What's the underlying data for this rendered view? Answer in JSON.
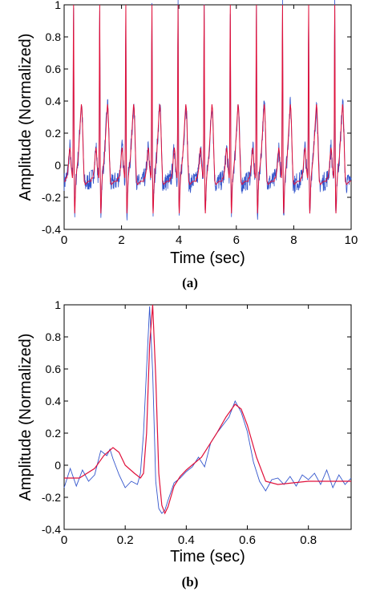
{
  "colors": {
    "noisy": "#3355cc",
    "filtered": "#e0103a",
    "axis": "#000000",
    "background": "#ffffff"
  },
  "panels": [
    {
      "caption": "(a)",
      "xlabel": "Time (sec)",
      "ylabel": "Amplitude (Normalized)"
    },
    {
      "caption": "(b)",
      "xlabel": "Time (sec)",
      "ylabel": "Amplitude (Normalized)"
    }
  ],
  "chart_data": [
    {
      "type": "line",
      "title": "",
      "xlabel": "Time (sec)",
      "ylabel": "Amplitude (Normalized)",
      "xlim": [
        0,
        10
      ],
      "ylim": [
        -0.4,
        1
      ],
      "xticks": [
        0,
        2,
        4,
        6,
        8,
        10
      ],
      "yticks": [
        -0.4,
        -0.2,
        0,
        0.2,
        0.4,
        0.6,
        0.8,
        1
      ],
      "grid": false,
      "legend": "none",
      "beat_times": [
        0.33,
        1.24,
        2.15,
        3.06,
        3.97,
        4.88,
        5.79,
        6.7,
        7.61,
        8.52,
        9.43
      ],
      "beat_template": {
        "t": [
          0,
          0.05,
          0.1,
          0.13,
          0.16,
          0.18,
          0.2,
          0.23,
          0.25,
          0.26,
          0.27,
          0.28,
          0.29,
          0.3,
          0.31,
          0.32,
          0.33,
          0.34,
          0.36,
          0.38,
          0.4,
          0.45,
          0.5,
          0.53,
          0.56,
          0.58,
          0.6,
          0.63,
          0.66,
          0.7,
          0.8,
          0.91
        ],
        "y": [
          -0.08,
          -0.08,
          -0.02,
          0.06,
          0.11,
          0.08,
          0.0,
          -0.05,
          -0.08,
          -0.05,
          0.2,
          0.75,
          1.0,
          0.55,
          -0.05,
          -0.25,
          -0.3,
          -0.26,
          -0.13,
          -0.07,
          -0.03,
          0.05,
          0.2,
          0.3,
          0.38,
          0.35,
          0.25,
          0.05,
          -0.1,
          -0.12,
          -0.1,
          -0.1
        ]
      },
      "series": [
        {
          "noise_amplitude": 0.06
        },
        {
          "noise_amplitude": 0
        }
      ]
    },
    {
      "type": "line",
      "title": "",
      "xlabel": "Time (sec)",
      "ylabel": "Amplitude (Normalized)",
      "xlim": [
        0,
        0.94
      ],
      "ylim": [
        -0.4,
        1
      ],
      "xticks": [
        0,
        0.2,
        0.4,
        0.6,
        0.8
      ],
      "yticks": [
        -0.4,
        -0.2,
        0,
        0.2,
        0.4,
        0.6,
        0.8,
        1
      ],
      "grid": false,
      "legend": "none",
      "series": [
        {
          "x": [
            0,
            0.02,
            0.04,
            0.06,
            0.08,
            0.1,
            0.12,
            0.14,
            0.15,
            0.16,
            0.18,
            0.2,
            0.22,
            0.24,
            0.25,
            0.26,
            0.27,
            0.28,
            0.29,
            0.3,
            0.31,
            0.32,
            0.33,
            0.34,
            0.36,
            0.38,
            0.4,
            0.42,
            0.44,
            0.46,
            0.48,
            0.5,
            0.52,
            0.54,
            0.56,
            0.58,
            0.6,
            0.62,
            0.64,
            0.66,
            0.68,
            0.7,
            0.72,
            0.74,
            0.76,
            0.78,
            0.8,
            0.82,
            0.84,
            0.86,
            0.88,
            0.9,
            0.92,
            0.94
          ],
          "y": [
            -0.14,
            -0.02,
            -0.13,
            -0.03,
            -0.1,
            -0.06,
            0.09,
            0.06,
            0.1,
            0.04,
            -0.06,
            -0.14,
            -0.1,
            -0.12,
            -0.05,
            0.2,
            0.6,
            0.99,
            0.58,
            -0.1,
            -0.27,
            -0.3,
            -0.28,
            -0.22,
            -0.11,
            -0.08,
            -0.04,
            -0.01,
            0.05,
            -0.01,
            0.14,
            0.2,
            0.25,
            0.3,
            0.4,
            0.33,
            0.21,
            0.02,
            -0.1,
            -0.16,
            -0.09,
            -0.08,
            -0.12,
            -0.07,
            -0.13,
            -0.06,
            -0.09,
            -0.05,
            -0.12,
            -0.03,
            -0.14,
            -0.06,
            -0.12,
            -0.08
          ]
        },
        {
          "x": [
            0,
            0.05,
            0.1,
            0.13,
            0.16,
            0.18,
            0.2,
            0.23,
            0.25,
            0.26,
            0.27,
            0.28,
            0.29,
            0.3,
            0.31,
            0.32,
            0.33,
            0.34,
            0.36,
            0.38,
            0.4,
            0.45,
            0.5,
            0.53,
            0.56,
            0.58,
            0.6,
            0.63,
            0.66,
            0.7,
            0.8,
            0.94
          ],
          "y": [
            -0.08,
            -0.08,
            -0.02,
            0.06,
            0.11,
            0.08,
            0.0,
            -0.05,
            -0.08,
            -0.05,
            0.2,
            0.75,
            1.0,
            0.55,
            -0.05,
            -0.25,
            -0.3,
            -0.26,
            -0.13,
            -0.07,
            -0.03,
            0.05,
            0.2,
            0.3,
            0.38,
            0.35,
            0.25,
            0.05,
            -0.1,
            -0.12,
            -0.1,
            -0.1
          ]
        }
      ]
    }
  ]
}
